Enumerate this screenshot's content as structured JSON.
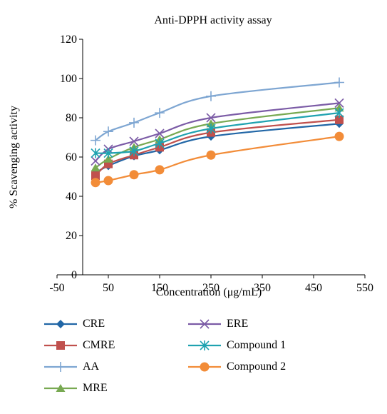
{
  "chart_data": {
    "type": "line",
    "title": "Anti-DPPH activity assay",
    "xlabel": "Concentration (μg/mL)",
    "ylabel": "% Scavenging activity",
    "xlim": [
      -50,
      550
    ],
    "ylim": [
      0,
      120
    ],
    "xticks": [
      -50,
      50,
      150,
      250,
      350,
      450,
      550
    ],
    "yticks": [
      0,
      20,
      40,
      60,
      80,
      100,
      120
    ],
    "grid": false,
    "legend_position": "bottom",
    "x": [
      25,
      50,
      100,
      150,
      250,
      500
    ],
    "series": [
      {
        "name": "CRE",
        "color": "#2166a6",
        "marker": "diamond",
        "values": [
          52,
          55.5,
          60.5,
          63.5,
          70.5,
          77
        ]
      },
      {
        "name": "CMRE",
        "color": "#c0504d",
        "marker": "square",
        "values": [
          50.5,
          56.5,
          61,
          65,
          72.5,
          79
        ]
      },
      {
        "name": "AA",
        "color": "#7ea6d2",
        "marker": "plus",
        "values": [
          68.5,
          73,
          77.5,
          82.5,
          91,
          98
        ]
      },
      {
        "name": "MRE",
        "color": "#78a952",
        "marker": "triangle",
        "values": [
          54.5,
          59,
          65,
          69,
          77,
          85
        ]
      },
      {
        "name": "ERE",
        "color": "#7b5ba6",
        "marker": "x",
        "values": [
          58,
          64,
          68,
          72,
          80,
          87.5
        ]
      },
      {
        "name": "Compound 1",
        "color": "#1fa2b0",
        "marker": "star",
        "values": [
          62,
          62,
          63,
          67,
          74.5,
          82.5
        ]
      },
      {
        "name": "Compound 2",
        "color": "#f28c38",
        "marker": "circle",
        "values": [
          47,
          48,
          51,
          53.5,
          61,
          70.5
        ]
      }
    ]
  }
}
